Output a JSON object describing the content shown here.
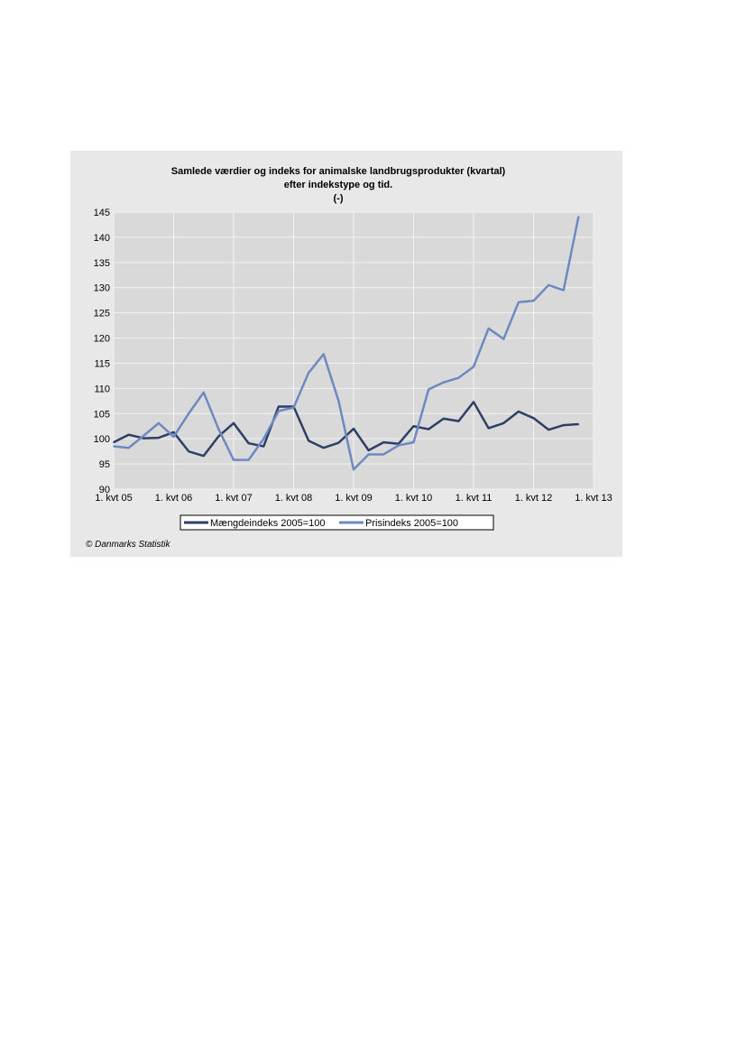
{
  "chart_data": {
    "type": "line",
    "title": "Samlede værdier og indeks for animalske landbrugsprodukter (kvartal)",
    "subtitle": "efter indekstype og tid.",
    "unit_label": "(-)",
    "xlabel": "",
    "ylabel": "",
    "ylim": [
      90,
      145
    ],
    "yticks": [
      90,
      95,
      100,
      105,
      110,
      115,
      120,
      125,
      130,
      135,
      140,
      145
    ],
    "xticks": [
      "1. kvt 05",
      "1. kvt 06",
      "1. kvt 07",
      "1. kvt 08",
      "1. kvt 09",
      "1. kvt 10",
      "1. kvt 11",
      "1. kvt 12",
      "1. kvt 13"
    ],
    "x": [
      "05K1",
      "05K2",
      "05K3",
      "05K4",
      "06K1",
      "06K2",
      "06K3",
      "06K4",
      "07K1",
      "07K2",
      "07K3",
      "07K4",
      "08K1",
      "08K2",
      "08K3",
      "08K4",
      "09K1",
      "09K2",
      "09K3",
      "09K4",
      "10K1",
      "10K2",
      "10K3",
      "10K4",
      "11K1",
      "11K2",
      "11K3",
      "11K4",
      "12K1",
      "12K2",
      "12K3",
      "12K4"
    ],
    "series": [
      {
        "name": "Mængdeindeks 2005=100",
        "color": "#2e3f66",
        "values": [
          99.3,
          100.8,
          100.1,
          100.2,
          101.3,
          97.5,
          96.6,
          100.5,
          103.1,
          99.1,
          98.5,
          106.4,
          106.4,
          99.6,
          98.2,
          99.2,
          102.0,
          97.7,
          99.3,
          99.0,
          102.5,
          101.9,
          104.0,
          103.5,
          107.3,
          102.1,
          103.1,
          105.4,
          104.1,
          101.8,
          102.7,
          102.9
        ]
      },
      {
        "name": "Prisindeks 2005=100",
        "color": "#6c89c0",
        "values": [
          98.5,
          98.2,
          100.6,
          103.1,
          100.4,
          105.0,
          109.2,
          101.9,
          95.8,
          95.8,
          100.0,
          105.5,
          106.2,
          113.1,
          116.8,
          107.5,
          93.9,
          96.9,
          96.9,
          98.7,
          99.3,
          109.8,
          111.2,
          112.1,
          114.3,
          121.9,
          119.8,
          127.1,
          127.4,
          130.5,
          129.5,
          144.1
        ]
      }
    ],
    "grid": true,
    "legend_position": "bottom-center",
    "plot_background": "#d9d9d9",
    "grid_color": "#f2f2f2"
  },
  "footer": {
    "copyright": "© Danmarks Statistik"
  }
}
